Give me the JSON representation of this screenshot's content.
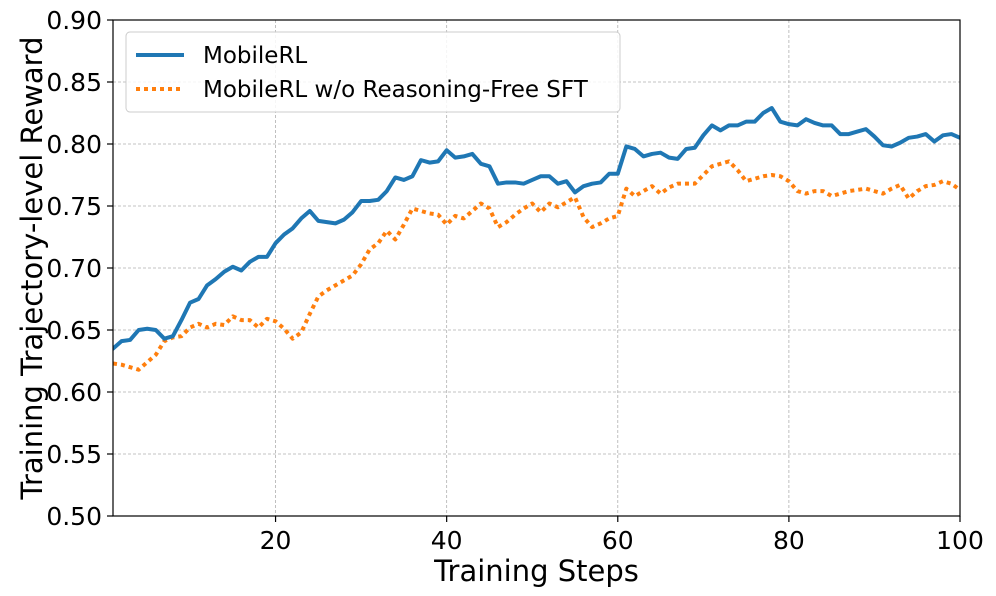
{
  "chart_data": {
    "type": "line",
    "title": "",
    "xlabel": "Training Steps",
    "ylabel": "Training Trajectory-level Reward",
    "xlim": [
      1,
      100
    ],
    "ylim": [
      0.5,
      0.9
    ],
    "grid": true,
    "legend_position": "top-left",
    "x_ticks": [
      20,
      40,
      60,
      80,
      100
    ],
    "x_tick_labels": [
      "20",
      "40",
      "60",
      "80",
      "100"
    ],
    "y_ticks": [
      0.5,
      0.55,
      0.6,
      0.65,
      0.7,
      0.75,
      0.8,
      0.85,
      0.9
    ],
    "y_tick_labels": [
      "0.50",
      "0.55",
      "0.60",
      "0.65",
      "0.70",
      "0.75",
      "0.80",
      "0.85",
      "0.90"
    ],
    "series": [
      {
        "name": "MobileRL",
        "color": "#1f77b4",
        "style": "solid",
        "x": [
          1,
          2,
          3,
          4,
          5,
          6,
          7,
          8,
          9,
          10,
          11,
          12,
          13,
          14,
          15,
          16,
          17,
          18,
          19,
          20,
          21,
          22,
          23,
          24,
          25,
          26,
          27,
          28,
          29,
          30,
          31,
          32,
          33,
          34,
          35,
          36,
          37,
          38,
          39,
          40,
          41,
          42,
          43,
          44,
          45,
          46,
          47,
          48,
          49,
          50,
          51,
          52,
          53,
          54,
          55,
          56,
          57,
          58,
          59,
          60,
          61,
          62,
          63,
          64,
          65,
          66,
          67,
          68,
          69,
          70,
          71,
          72,
          73,
          74,
          75,
          76,
          77,
          78,
          79,
          80,
          81,
          82,
          83,
          84,
          85,
          86,
          87,
          88,
          89,
          90,
          91,
          92,
          93,
          94,
          95,
          96,
          97,
          98,
          99,
          100
        ],
        "values": [
          0.635,
          0.641,
          0.642,
          0.65,
          0.651,
          0.65,
          0.643,
          0.645,
          0.658,
          0.672,
          0.675,
          0.686,
          0.691,
          0.697,
          0.701,
          0.698,
          0.705,
          0.709,
          0.709,
          0.72,
          0.727,
          0.732,
          0.74,
          0.746,
          0.738,
          0.737,
          0.736,
          0.739,
          0.745,
          0.754,
          0.754,
          0.755,
          0.762,
          0.773,
          0.771,
          0.774,
          0.787,
          0.785,
          0.786,
          0.795,
          0.789,
          0.79,
          0.792,
          0.784,
          0.782,
          0.768,
          0.769,
          0.769,
          0.768,
          0.771,
          0.774,
          0.774,
          0.768,
          0.77,
          0.761,
          0.766,
          0.768,
          0.769,
          0.776,
          0.776,
          0.798,
          0.796,
          0.79,
          0.792,
          0.793,
          0.789,
          0.788,
          0.796,
          0.797,
          0.807,
          0.815,
          0.811,
          0.815,
          0.815,
          0.818,
          0.818,
          0.825,
          0.829,
          0.818,
          0.816,
          0.815,
          0.82,
          0.817,
          0.815,
          0.815,
          0.808,
          0.808,
          0.81,
          0.812,
          0.806,
          0.799,
          0.798,
          0.801,
          0.805,
          0.806,
          0.808,
          0.802,
          0.807,
          0.808,
          0.805
        ]
      },
      {
        "name": "MobileRL w/o Reasoning-Free SFT",
        "color": "#ff7f0e",
        "style": "dotted",
        "x": [
          1,
          2,
          3,
          4,
          5,
          6,
          7,
          8,
          9,
          10,
          11,
          12,
          13,
          14,
          15,
          16,
          17,
          18,
          19,
          20,
          21,
          22,
          23,
          24,
          25,
          26,
          27,
          28,
          29,
          30,
          31,
          32,
          33,
          34,
          35,
          36,
          37,
          38,
          39,
          40,
          41,
          42,
          43,
          44,
          45,
          46,
          47,
          48,
          49,
          50,
          51,
          52,
          53,
          54,
          55,
          56,
          57,
          58,
          59,
          60,
          61,
          62,
          63,
          64,
          65,
          66,
          67,
          68,
          69,
          70,
          71,
          72,
          73,
          74,
          75,
          76,
          77,
          78,
          79,
          80,
          81,
          82,
          83,
          84,
          85,
          86,
          87,
          88,
          89,
          90,
          91,
          92,
          93,
          94,
          95,
          96,
          97,
          98,
          99,
          100
        ],
        "values": [
          0.623,
          0.622,
          0.62,
          0.618,
          0.624,
          0.63,
          0.641,
          0.644,
          0.645,
          0.652,
          0.655,
          0.652,
          0.655,
          0.654,
          0.661,
          0.658,
          0.658,
          0.652,
          0.659,
          0.657,
          0.651,
          0.643,
          0.648,
          0.663,
          0.677,
          0.682,
          0.686,
          0.69,
          0.694,
          0.703,
          0.715,
          0.72,
          0.73,
          0.723,
          0.735,
          0.748,
          0.746,
          0.744,
          0.743,
          0.735,
          0.742,
          0.74,
          0.746,
          0.752,
          0.748,
          0.733,
          0.737,
          0.743,
          0.748,
          0.752,
          0.745,
          0.752,
          0.749,
          0.753,
          0.757,
          0.741,
          0.733,
          0.736,
          0.74,
          0.742,
          0.764,
          0.758,
          0.762,
          0.766,
          0.76,
          0.765,
          0.768,
          0.768,
          0.768,
          0.775,
          0.782,
          0.784,
          0.786,
          0.779,
          0.77,
          0.772,
          0.774,
          0.775,
          0.774,
          0.77,
          0.762,
          0.76,
          0.762,
          0.762,
          0.758,
          0.76,
          0.762,
          0.763,
          0.764,
          0.762,
          0.76,
          0.764,
          0.767,
          0.756,
          0.762,
          0.766,
          0.767,
          0.77,
          0.768,
          0.763
        ]
      }
    ]
  }
}
